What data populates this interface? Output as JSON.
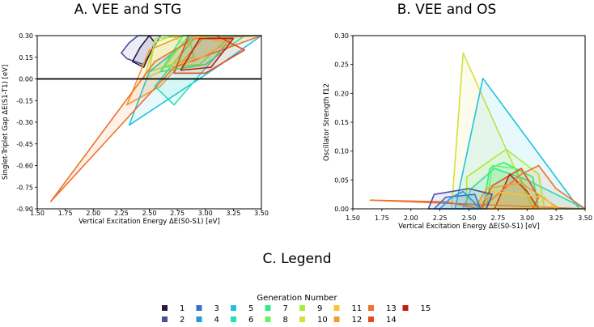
{
  "chart_data": [
    {
      "panel": "A",
      "type": "scatter",
      "title": "A. VEE and STG",
      "xlabel": "Vertical Excitation Energy ΔE(S0-S1) [eV]",
      "ylabel": "Singlet-Triplet Gap ΔE(S1-T1) [eV]",
      "xlim": [
        1.5,
        3.5
      ],
      "ylim": [
        -0.9,
        0.3
      ],
      "xticks": [
        "1.50",
        "1.75",
        "2.00",
        "2.25",
        "2.50",
        "2.75",
        "3.00",
        "3.25",
        "3.50"
      ],
      "yticks": [
        "0.30",
        "0.15",
        "0.00",
        "-0.15",
        "-0.30",
        "-0.45",
        "-0.60",
        "-0.75",
        "-0.90"
      ],
      "reference_line_y": 0.0,
      "hulls": [
        {
          "generation": 2,
          "points": [
            [
              2.25,
              0.18
            ],
            [
              2.32,
              0.25
            ],
            [
              2.4,
              0.3
            ],
            [
              2.6,
              0.3
            ],
            [
              2.45,
              0.1
            ],
            [
              2.3,
              0.14
            ]
          ]
        },
        {
          "generation": 1,
          "points": [
            [
              2.35,
              0.12
            ],
            [
              2.42,
              0.22
            ],
            [
              2.5,
              0.3
            ],
            [
              2.55,
              0.25
            ],
            [
              2.45,
              0.08
            ]
          ]
        },
        {
          "generation": 10,
          "points": [
            [
              2.45,
              0.0
            ],
            [
              2.55,
              0.25
            ],
            [
              2.7,
              0.3
            ],
            [
              2.8,
              0.25
            ],
            [
              2.6,
              0.05
            ]
          ]
        },
        {
          "generation": 9,
          "points": [
            [
              2.5,
              0.05
            ],
            [
              2.55,
              0.28
            ],
            [
              2.85,
              0.3
            ],
            [
              2.9,
              0.15
            ]
          ]
        },
        {
          "generation": 12,
          "points": [
            [
              2.3,
              -0.18
            ],
            [
              2.5,
              0.2
            ],
            [
              2.8,
              0.3
            ],
            [
              3.0,
              0.3
            ],
            [
              2.6,
              -0.05
            ]
          ]
        },
        {
          "generation": 5,
          "points": [
            [
              2.32,
              -0.32
            ],
            [
              2.5,
              0.05
            ],
            [
              2.9,
              0.3
            ],
            [
              3.5,
              0.3
            ],
            [
              3.1,
              0.08
            ]
          ]
        },
        {
          "generation": 6,
          "points": [
            [
              2.55,
              -0.05
            ],
            [
              2.72,
              -0.18
            ],
            [
              3.25,
              0.3
            ],
            [
              3.5,
              0.3
            ],
            [
              2.9,
              0.28
            ]
          ]
        },
        {
          "generation": 7,
          "points": [
            [
              2.6,
              0.05
            ],
            [
              2.8,
              0.3
            ],
            [
              3.35,
              0.3
            ],
            [
              3.0,
              0.1
            ]
          ]
        },
        {
          "generation": 8,
          "points": [
            [
              2.62,
              0.08
            ],
            [
              2.85,
              0.3
            ],
            [
              3.2,
              0.28
            ],
            [
              2.95,
              0.1
            ]
          ]
        },
        {
          "generation": 13,
          "points": [
            [
              1.62,
              -0.85
            ],
            [
              2.72,
              0.08
            ],
            [
              3.5,
              0.3
            ],
            [
              2.9,
              0.28
            ],
            [
              2.55,
              0.12
            ]
          ]
        },
        {
          "generation": 11,
          "points": [
            [
              2.7,
              0.1
            ],
            [
              2.9,
              0.3
            ],
            [
              3.2,
              0.25
            ],
            [
              2.9,
              0.12
            ]
          ]
        },
        {
          "generation": 14,
          "points": [
            [
              2.72,
              0.04
            ],
            [
              2.85,
              0.3
            ],
            [
              3.1,
              0.3
            ],
            [
              3.35,
              0.2
            ],
            [
              3.0,
              0.04
            ]
          ]
        },
        {
          "generation": 15,
          "points": [
            [
              2.78,
              0.06
            ],
            [
              2.95,
              0.28
            ],
            [
              3.25,
              0.28
            ],
            [
              3.05,
              0.08
            ]
          ]
        }
      ]
    },
    {
      "panel": "B",
      "type": "scatter",
      "title": "B. VEE and OS",
      "xlabel": "Vertical Excitation Energy ΔE(S0-S1) [eV]",
      "ylabel": "Oscillator Strength f12",
      "xlim": [
        1.5,
        3.5
      ],
      "ylim": [
        0.0,
        0.3
      ],
      "xticks": [
        "1.50",
        "1.75",
        "2.00",
        "2.25",
        "2.50",
        "2.75",
        "3.00",
        "3.25",
        "3.50"
      ],
      "yticks": [
        "0.30",
        "0.25",
        "0.20",
        "0.15",
        "0.10",
        "0.05",
        "0.00"
      ],
      "hulls": [
        {
          "generation": 10,
          "points": [
            [
              2.35,
              0.0
            ],
            [
              2.45,
              0.27
            ],
            [
              3.05,
              0.0
            ]
          ]
        },
        {
          "generation": 5,
          "points": [
            [
              2.38,
              0.0
            ],
            [
              2.62,
              0.226
            ],
            [
              3.45,
              0.0
            ]
          ]
        },
        {
          "generation": 6,
          "points": [
            [
              2.45,
              0.0
            ],
            [
              2.52,
              0.035
            ],
            [
              2.72,
              0.07
            ],
            [
              3.0,
              0.05
            ],
            [
              3.5,
              0.0
            ]
          ]
        },
        {
          "generation": 9,
          "points": [
            [
              2.48,
              0.0
            ],
            [
              2.48,
              0.055
            ],
            [
              2.82,
              0.103
            ],
            [
              3.1,
              0.06
            ],
            [
              3.15,
              0.0
            ]
          ]
        },
        {
          "generation": 7,
          "points": [
            [
              2.62,
              0.0
            ],
            [
              2.68,
              0.07
            ],
            [
              2.8,
              0.08
            ],
            [
              3.05,
              0.055
            ],
            [
              3.1,
              0.0
            ]
          ]
        },
        {
          "generation": 8,
          "points": [
            [
              2.65,
              0.0
            ],
            [
              2.7,
              0.075
            ],
            [
              2.9,
              0.07
            ],
            [
              3.08,
              0.0
            ]
          ]
        },
        {
          "generation": 14,
          "points": [
            [
              2.6,
              0.0
            ],
            [
              2.7,
              0.04
            ],
            [
              2.95,
              0.07
            ],
            [
              3.1,
              0.02
            ],
            [
              3.05,
              0.0
            ]
          ]
        },
        {
          "generation": 15,
          "points": [
            [
              2.72,
              0.0
            ],
            [
              2.85,
              0.06
            ],
            [
              3.0,
              0.03
            ],
            [
              3.1,
              0.0
            ]
          ]
        },
        {
          "generation": 13,
          "points": [
            [
              1.65,
              0.015
            ],
            [
              2.3,
              0.012
            ],
            [
              2.6,
              0.0
            ],
            [
              2.95,
              0.06
            ],
            [
              3.1,
              0.075
            ],
            [
              3.25,
              0.035
            ],
            [
              3.5,
              0.0
            ]
          ]
        },
        {
          "generation": 12,
          "points": [
            [
              2.55,
              0.0
            ],
            [
              2.65,
              0.035
            ],
            [
              2.95,
              0.045
            ],
            [
              3.28,
              0.0
            ]
          ]
        },
        {
          "generation": 11,
          "points": [
            [
              2.55,
              0.0
            ],
            [
              2.7,
              0.03
            ],
            [
              3.15,
              0.02
            ],
            [
              3.25,
              0.0
            ]
          ]
        },
        {
          "generation": 2,
          "points": [
            [
              2.15,
              0.0
            ],
            [
              2.2,
              0.025
            ],
            [
              2.5,
              0.035
            ],
            [
              2.7,
              0.025
            ],
            [
              2.65,
              0.0
            ]
          ]
        },
        {
          "generation": 3,
          "points": [
            [
              2.2,
              0.0
            ],
            [
              2.3,
              0.02
            ],
            [
              2.55,
              0.025
            ],
            [
              2.6,
              0.0
            ]
          ]
        },
        {
          "generation": 4,
          "points": [
            [
              2.25,
              0.0
            ],
            [
              2.35,
              0.02
            ],
            [
              2.45,
              0.03
            ],
            [
              2.6,
              0.0
            ]
          ]
        }
      ]
    }
  ],
  "legend": {
    "panel_title": "C. Legend",
    "title": "Generation Number",
    "items": [
      {
        "label": "1",
        "color": "#2a1a3d"
      },
      {
        "label": "2",
        "color": "#4a4ea3"
      },
      {
        "label": "3",
        "color": "#3a6fd0"
      },
      {
        "label": "4",
        "color": "#1e9bd8"
      },
      {
        "label": "5",
        "color": "#22c2dd"
      },
      {
        "label": "6",
        "color": "#24dfbb"
      },
      {
        "label": "7",
        "color": "#2fec86"
      },
      {
        "label": "8",
        "color": "#6cf25a"
      },
      {
        "label": "9",
        "color": "#a6ec3a"
      },
      {
        "label": "10",
        "color": "#d5e03a"
      },
      {
        "label": "11",
        "color": "#f6c33a"
      },
      {
        "label": "12",
        "color": "#f79a2b"
      },
      {
        "label": "13",
        "color": "#f0722b"
      },
      {
        "label": "14",
        "color": "#e34a1d"
      },
      {
        "label": "15",
        "color": "#c21d12"
      }
    ]
  }
}
